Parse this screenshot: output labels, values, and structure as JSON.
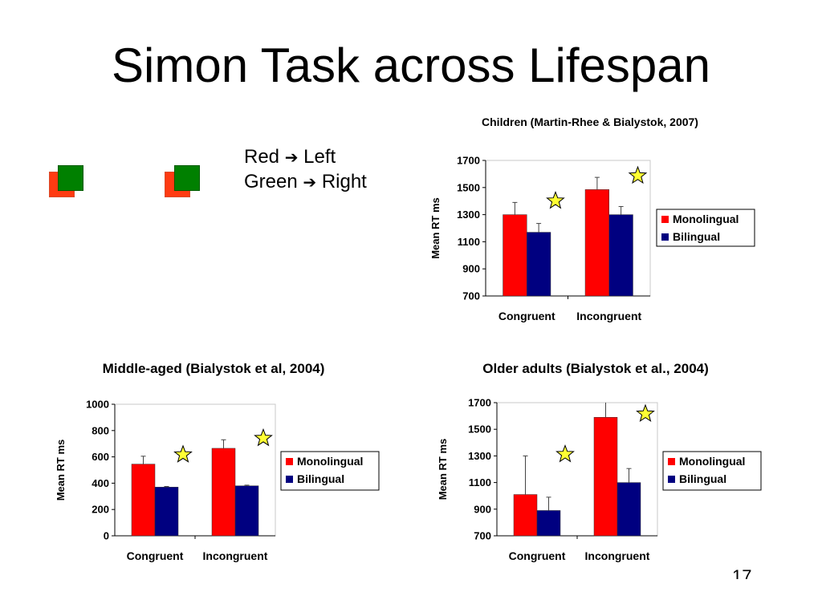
{
  "slide": {
    "title": "Simon Task across Lifespan",
    "rule_red": "Red",
    "rule_left": "Left",
    "rule_green": "Green",
    "rule_right": "Right",
    "page_number": "17"
  },
  "colors": {
    "monolingual": "#ff0000",
    "bilingual": "#000080",
    "star_fill": "#ffff33",
    "stimulus_red": "#ff3b12",
    "stimulus_green": "#008000"
  },
  "chart_data": [
    {
      "type": "bar",
      "title": "Children (Martin-Rhee & Bialystok, 2007)",
      "xlabel": "",
      "ylabel": "Mean RT ms",
      "categories": [
        "Congruent",
        "Incongruent"
      ],
      "ylim": [
        700,
        1700
      ],
      "yticks": [
        700,
        900,
        1100,
        1300,
        1500,
        1700
      ],
      "series": [
        {
          "name": "Monolingual",
          "values": [
            1300,
            1485
          ],
          "errors": [
            90,
            90
          ]
        },
        {
          "name": "Bilingual",
          "values": [
            1170,
            1300
          ],
          "errors": [
            65,
            60
          ]
        }
      ],
      "star_markers": [
        "Congruent",
        "Incongruent"
      ],
      "legend": "right"
    },
    {
      "type": "bar",
      "title": "Middle-aged (Bialystok et al, 2004)",
      "xlabel": "",
      "ylabel": "Mean RT ms",
      "categories": [
        "Congruent",
        "Incongruent"
      ],
      "ylim": [
        0,
        1000
      ],
      "yticks": [
        0,
        200,
        400,
        600,
        800,
        1000
      ],
      "series": [
        {
          "name": "Monolingual",
          "values": [
            545,
            665
          ],
          "errors": [
            60,
            65
          ]
        },
        {
          "name": "Bilingual",
          "values": [
            370,
            380
          ],
          "errors": [
            5,
            5
          ]
        }
      ],
      "star_markers": [
        "Congruent",
        "Incongruent"
      ],
      "legend": "right"
    },
    {
      "type": "bar",
      "title": "Older adults (Bialystok et al., 2004)",
      "xlabel": "",
      "ylabel": "Mean RT ms",
      "categories": [
        "Congruent",
        "Incongruent"
      ],
      "ylim": [
        700,
        1700
      ],
      "yticks": [
        700,
        900,
        1100,
        1300,
        1500,
        1700
      ],
      "series": [
        {
          "name": "Monolingual",
          "values": [
            1010,
            1590
          ],
          "errors": [
            290,
            120
          ]
        },
        {
          "name": "Bilingual",
          "values": [
            890,
            1100
          ],
          "errors": [
            100,
            105
          ]
        }
      ],
      "star_markers": [
        "Congruent",
        "Incongruent"
      ],
      "legend": "right"
    }
  ]
}
